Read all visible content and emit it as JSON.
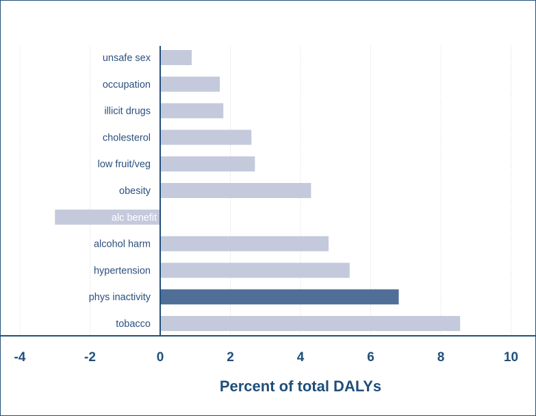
{
  "chart_data": {
    "type": "bar",
    "orientation": "horizontal",
    "title": "",
    "xlabel": "Percent of total DALYs",
    "ylabel": "",
    "xlim": [
      -4,
      10
    ],
    "xticks": [
      -4,
      -2,
      0,
      2,
      4,
      6,
      8,
      10
    ],
    "grid": true,
    "categories": [
      "unsafe sex",
      "occupation",
      "illicit drugs",
      "cholesterol",
      "low fruit/veg",
      "obesity",
      "alc benefit",
      "alcohol harm",
      "hypertension",
      "phys inactivity",
      "tobacco"
    ],
    "values": [
      0.9,
      1.7,
      1.8,
      2.6,
      2.7,
      4.3,
      -3.0,
      4.8,
      5.4,
      6.8,
      8.55
    ],
    "highlight": "phys inactivity",
    "colors": {
      "bar": "#c4cadc",
      "highlight": "#4f6f99",
      "axis": "#1f4e79",
      "grid": "#d4d4d4",
      "label": "#2b4f7e"
    }
  }
}
